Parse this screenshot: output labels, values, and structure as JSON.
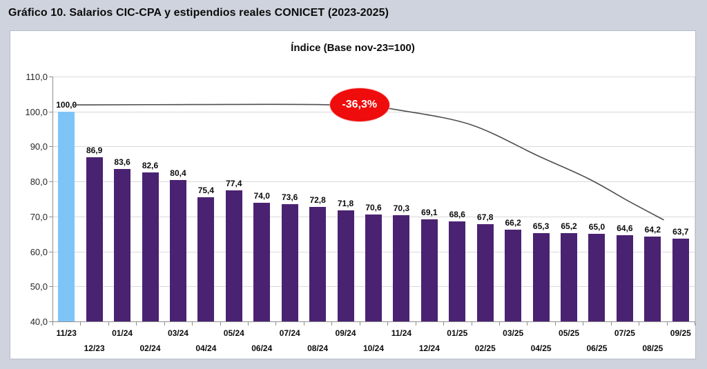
{
  "page": {
    "title": "Gráfico 10. Salarios CIC-CPA y estipendios reales CONICET (2023-2025)"
  },
  "chart": {
    "subtitle": "Índice (Base nov-23=100)",
    "annotation_text": "-36,3%"
  },
  "chart_data": {
    "type": "bar",
    "title": "Índice (Base nov-23=100)",
    "categories": [
      "11/23",
      "12/23",
      "01/24",
      "02/24",
      "03/24",
      "04/24",
      "05/24",
      "06/24",
      "07/24",
      "08/24",
      "09/24",
      "10/24",
      "11/24",
      "12/24",
      "01/25",
      "02/25",
      "03/25",
      "04/25",
      "05/25",
      "06/25",
      "07/25",
      "08/25",
      "09/25"
    ],
    "values": [
      100.0,
      86.9,
      83.6,
      82.6,
      80.4,
      75.4,
      77.4,
      74.0,
      73.6,
      72.8,
      71.8,
      70.6,
      70.3,
      69.1,
      68.6,
      67.8,
      66.2,
      65.3,
      65.2,
      65.0,
      64.6,
      64.2,
      63.7
    ],
    "value_labels": [
      "100,0",
      "86,9",
      "83,6",
      "82,6",
      "80,4",
      "75,4",
      "77,4",
      "74,0",
      "73,6",
      "72,8",
      "71,8",
      "70,6",
      "70,3",
      "69,1",
      "68,6",
      "67,8",
      "66,2",
      "65,3",
      "65,2",
      "65,0",
      "64,6",
      "64,2",
      "63,7"
    ],
    "xlabel": "",
    "ylabel": "",
    "ylim": [
      40,
      110
    ],
    "yticks": [
      110,
      100,
      90,
      80,
      70,
      60,
      50,
      40
    ],
    "ytick_labels": [
      "110,0",
      "100,0",
      "90,0",
      "80,0",
      "70,0",
      "60,0",
      "50,0",
      "40,0"
    ],
    "grid": true,
    "legend": "none",
    "x_labels_staggered": true,
    "bar_color": "#4A2272",
    "highlight_index": 0,
    "highlight_color": "#7FC4F7",
    "annotation": {
      "text": "-36,3%",
      "fill": "#EE0C0C",
      "text_color": "#FFFFFF",
      "x_index": 10.5,
      "y_value": 102
    },
    "trend_line": {
      "color": "#4D4D4D",
      "points": [
        [
          0.7,
          101.9
        ],
        [
          5,
          102.0
        ],
        [
          9.5,
          102.0
        ],
        [
          11.5,
          101.2
        ],
        [
          12.5,
          100.3
        ],
        [
          15,
          96.2
        ],
        [
          17.4,
          87.3
        ],
        [
          19.2,
          80.8
        ],
        [
          20.7,
          74.1
        ],
        [
          21.9,
          69.0
        ]
      ]
    }
  },
  "colors": {
    "background": "#CFD3DD",
    "panel": "#FFFFFF",
    "panel_border": "#B7BCC9",
    "grid": "#D9D9D9",
    "axis": "#8E8E8E"
  }
}
